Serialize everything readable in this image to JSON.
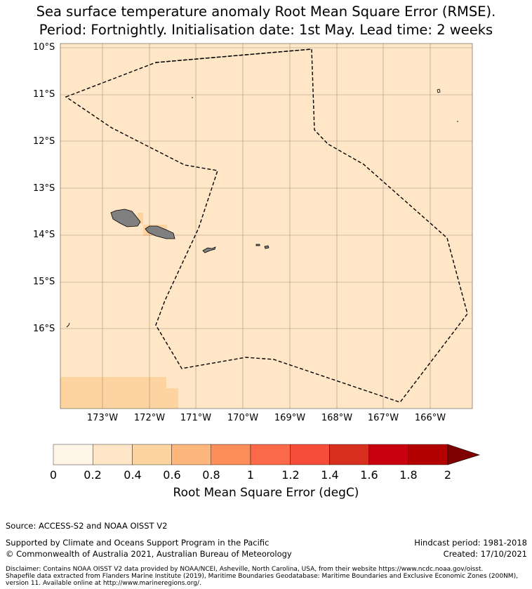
{
  "title": {
    "line1": "Sea surface temperature anomaly Root Mean Square Error (RMSE).",
    "line2": "Period: Fortnightly. Initialisation date: 1st May. Lead time: 2 weeks"
  },
  "map": {
    "lat_labels": [
      "10°S",
      "11°S",
      "12°S",
      "13°S",
      "14°S",
      "15°S",
      "16°S"
    ],
    "lon_labels": [
      "173°W",
      "172°W",
      "171°W",
      "170°W",
      "169°W",
      "168°W",
      "167°W",
      "166°W"
    ],
    "background_color": "#fee6c6",
    "land_color": "#808080"
  },
  "colorbar": {
    "ticks": [
      "0",
      "0.2",
      "0.4",
      "0.6",
      "0.8",
      "1",
      "1.2",
      "1.4",
      "1.6",
      "1.8",
      "2"
    ],
    "colors": [
      "#fff5e6",
      "#fee6c6",
      "#fdd3a0",
      "#fdb77d",
      "#fd8d59",
      "#fc6a4a",
      "#f54d3a",
      "#d7301f",
      "#c9000f",
      "#b30000",
      "#7f0000"
    ],
    "label": "Root Mean Square Error (degC)"
  },
  "footer": {
    "source": "Source: ACCESS-S2 and NOAA OISST V2",
    "support": "Supported by Climate and Oceans Support Program in the Pacific",
    "copyright": "© Commonwealth of Australia 2021, Australian Bureau of Meteorology",
    "hindcast": "Hindcast period: 1981-2018",
    "created": "Created: 17/10/2021",
    "disclaimer_line1": "Disclaimer: Contains NOAA OISST V2 data provided by NOAA/NCEI, Asheville, North Carolina, USA, from their website https://www.ncdc.noaa.gov/oisst.",
    "disclaimer_line2": "Shapefile data extracted from Flanders Marine Institute (2019), Maritime Boundaries Geodatabase: Maritime Boundaries and Exclusive Economic Zones (200NM),",
    "disclaimer_line3": "version 11. Available online at http://www.marineregions.org/."
  }
}
